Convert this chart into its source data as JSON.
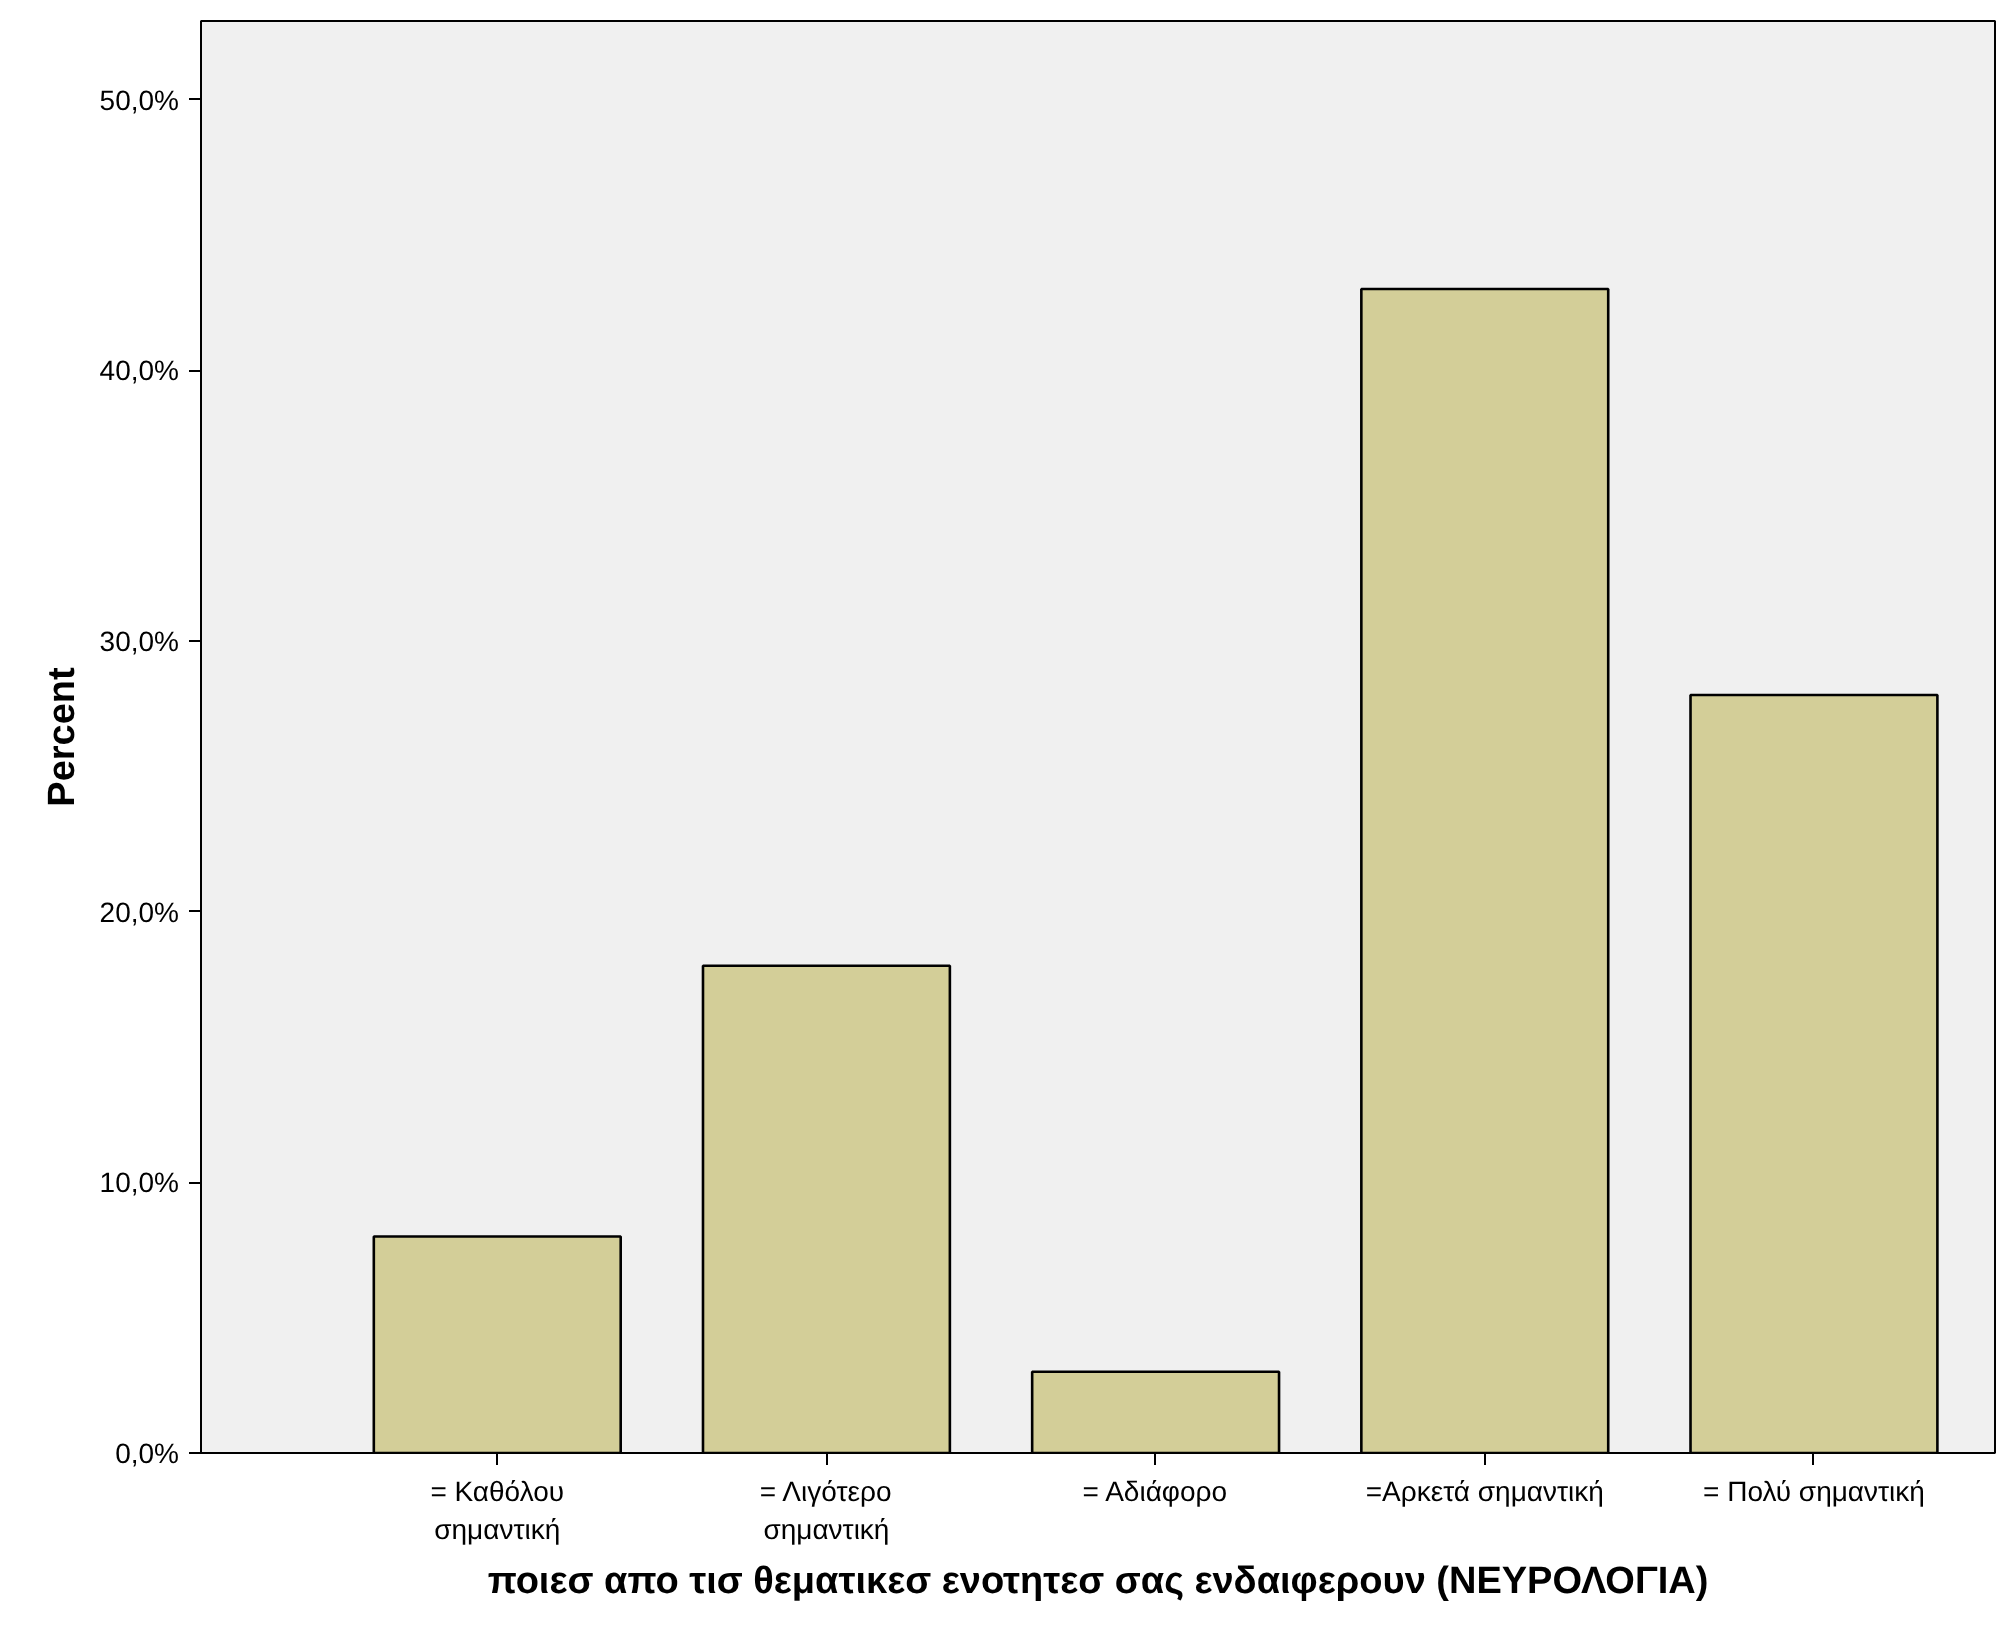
{
  "chart_data": {
    "type": "bar",
    "xlabel": "ποιεσ απο τισ θεματικεσ ενοτητεσ σας ενδαιφερουν (ΝΕΥΡΟΛΟΓΙΑ)",
    "ylabel": "Percent",
    "categories": [
      "= Καθόλου\nσημαντική",
      "= Λιγότερο\nσημαντική",
      "= Αδιάφορο",
      "=Αρκετά σημαντική",
      "= Πολύ σημαντική"
    ],
    "values": [
      8,
      18,
      3,
      43,
      28
    ],
    "color": "#d3ce98",
    "ylim": [
      0,
      52.9
    ],
    "yticks": [
      {
        "value": 0,
        "label": "0,0%"
      },
      {
        "value": 10,
        "label": "10,0%"
      },
      {
        "value": 20,
        "label": "20,0%"
      },
      {
        "value": 30,
        "label": "30,0%"
      },
      {
        "value": 40,
        "label": "40,0%"
      },
      {
        "value": 50,
        "label": "50,0%"
      }
    ],
    "grid": false
  }
}
